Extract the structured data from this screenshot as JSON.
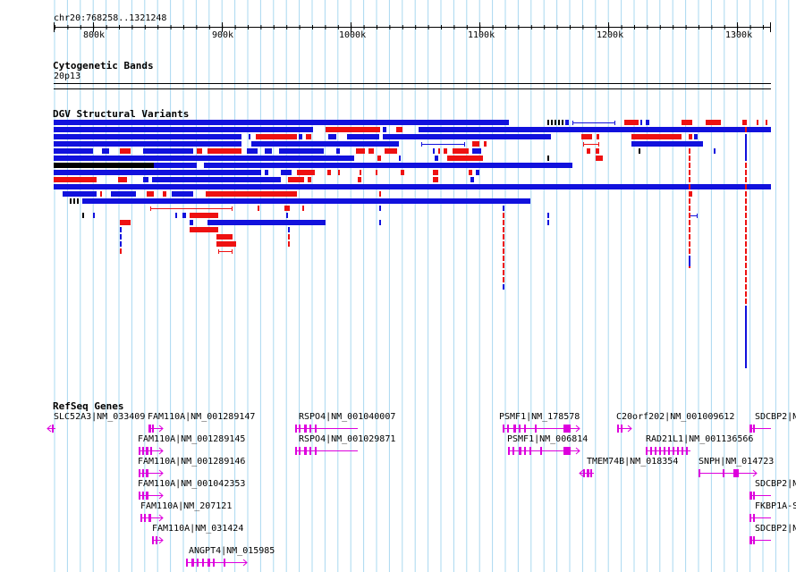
{
  "location": "chr20:768258..1321248",
  "ruler": {
    "ticks": [
      "800k",
      "900k",
      "1000k",
      "1100k",
      "1200k",
      "1300k"
    ]
  },
  "tracks": {
    "cytoband": {
      "title": "Cytogenetic Bands",
      "band": "20p13"
    },
    "dgv": {
      "title": "DGV Structural Variants"
    },
    "refseq": {
      "title": "RefSeq Genes"
    }
  },
  "colors": {
    "gain": "#ee1111",
    "loss": "#1111dd",
    "complex": "#000000",
    "gene": "#dd00dd",
    "grid": "#a9d8f0"
  },
  "genes": [
    {
      "label": "SLC52A3|NM_033409"
    },
    {
      "label": "FAM110A|NM_001289147"
    },
    {
      "label": "RSPO4|NM_001040007"
    },
    {
      "label": "PSMF1|NM_178578"
    },
    {
      "label": "C20orf202|NM_001009612"
    },
    {
      "label": "SDCBP2|N"
    },
    {
      "label": "FAM110A|NM_001289145"
    },
    {
      "label": "RSPO4|NM_001029871"
    },
    {
      "label": "PSMF1|NM_006814"
    },
    {
      "label": "RAD21L1|NM_001136566"
    },
    {
      "label": "FAM110A|NM_001289146"
    },
    {
      "label": "TMEM74B|NM_018354"
    },
    {
      "label": "SNPH|NM_014723"
    },
    {
      "label": "FAM110A|NM_001042353"
    },
    {
      "label": "SDCBP2|N"
    },
    {
      "label": "FAM110A|NM_207121"
    },
    {
      "label": "FKBP1A-S"
    },
    {
      "label": "FAM110A|NM_031424"
    },
    {
      "label": "SDCBP2|N"
    },
    {
      "label": "ANGPT4|NM_015985"
    }
  ]
}
